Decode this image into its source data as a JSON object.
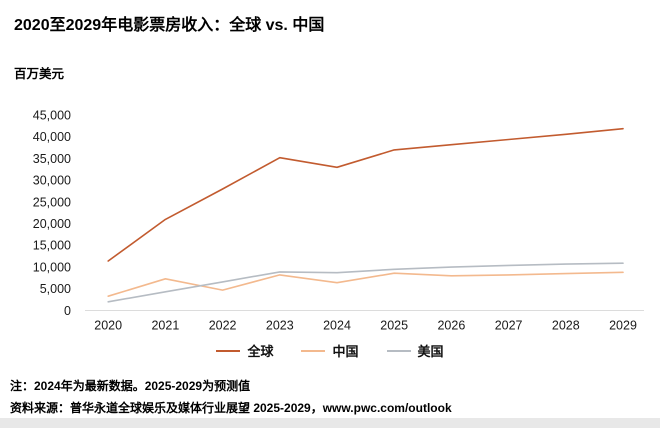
{
  "title": "2020至2029年电影票房收入：全球 vs. 中国",
  "unit_label": "百万美元",
  "colors": {
    "global": "#c25b2f",
    "china": "#f3b98e",
    "us": "#b6bcc3",
    "axis_line": "#dcdcdc",
    "tick_text": "#1a1a1a"
  },
  "chart_data": {
    "type": "line",
    "title": "2020至2029年电影票房收入：全球 vs. 中国",
    "xlabel": "",
    "ylabel": "百万美元",
    "x": [
      "2020",
      "2021",
      "2022",
      "2023",
      "2024",
      "2025",
      "2026",
      "2027",
      "2028",
      "2029"
    ],
    "series": [
      {
        "name": "全球",
        "color_key": "global",
        "values": [
          11400,
          21000,
          28000,
          35200,
          33000,
          37000,
          38200,
          39400,
          40600,
          41900
        ]
      },
      {
        "name": "中国",
        "color_key": "china",
        "values": [
          3300,
          7300,
          4700,
          8200,
          6400,
          8600,
          8000,
          8200,
          8500,
          8800
        ]
      },
      {
        "name": "美国",
        "color_key": "us",
        "values": [
          2000,
          4300,
          6600,
          8900,
          8700,
          9500,
          10000,
          10400,
          10700,
          10900
        ]
      }
    ],
    "ylim": [
      0,
      45000
    ],
    "ytick_step": 5000,
    "grid": false,
    "legend_position": "bottom"
  },
  "notes": {
    "note1": "注：2024年为最新数据。2025-2029为预测值",
    "note2": "资料来源：普华永道全球娱乐及媒体行业展望 2025-2029，www.pwc.com/outlook"
  }
}
